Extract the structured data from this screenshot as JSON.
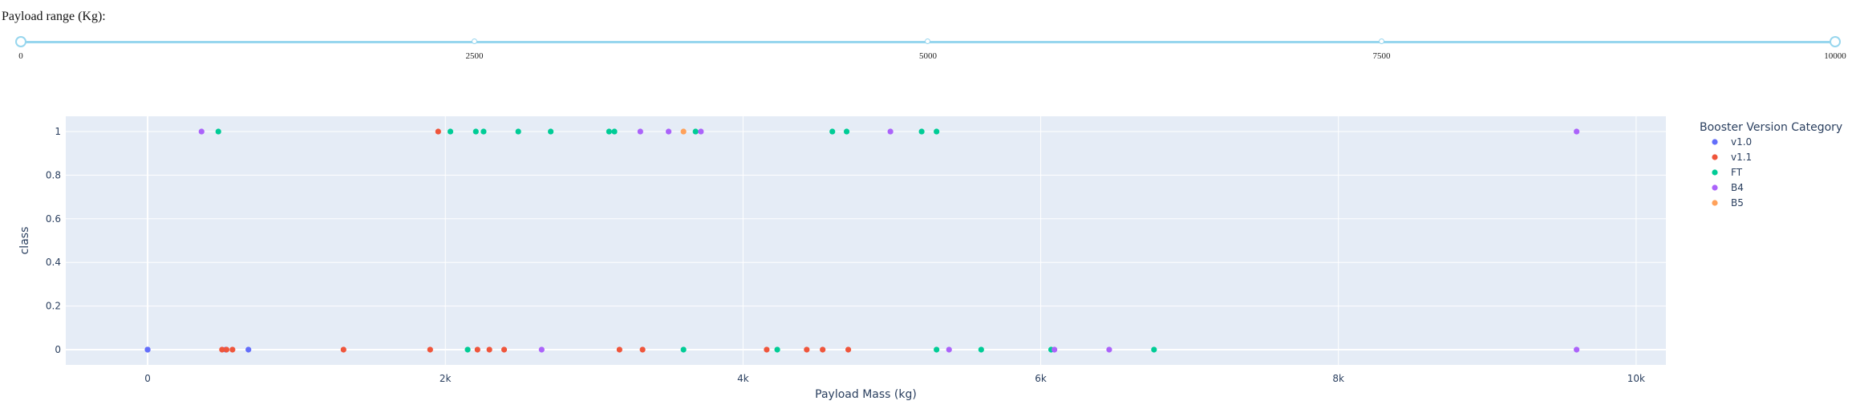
{
  "slider": {
    "title": "Payload range (Kg):",
    "min": 0,
    "max": 10000,
    "selected": [
      0,
      10000
    ],
    "marks": [
      "0",
      "2500",
      "5000",
      "7500",
      "10000"
    ],
    "track_color": "#97d6ee"
  },
  "chart_data": {
    "type": "scatter",
    "xlabel": "Payload Mass (kg)",
    "ylabel": "class",
    "xlim": [
      -550,
      10200
    ],
    "ylim": [
      -0.07,
      1.07
    ],
    "x_ticks": [
      0,
      2000,
      4000,
      6000,
      8000,
      10000
    ],
    "x_tick_labels": [
      "0",
      "2k",
      "4k",
      "6k",
      "8k",
      "10k"
    ],
    "y_ticks": [
      0,
      0.2,
      0.4,
      0.6,
      0.8,
      1
    ],
    "y_tick_labels": [
      "0",
      "0.2",
      "0.4",
      "0.6",
      "0.8",
      "1"
    ],
    "grid": true,
    "plot_background": "#e5ecf6",
    "legend": {
      "title": "Booster Version Category",
      "placement": "right"
    },
    "series": [
      {
        "name": "v1.0",
        "color": "#636efa",
        "points": [
          [
            0,
            0
          ],
          [
            0,
            0
          ],
          [
            525,
            0
          ],
          [
            677,
            0
          ]
        ]
      },
      {
        "name": "v1.1",
        "color": "#ef553b",
        "points": [
          [
            500,
            0
          ],
          [
            530,
            0
          ],
          [
            570,
            0
          ],
          [
            1316,
            0
          ],
          [
            1898,
            0
          ],
          [
            1952,
            1
          ],
          [
            2216,
            0
          ],
          [
            2296,
            0
          ],
          [
            2395,
            0
          ],
          [
            3170,
            0
          ],
          [
            3325,
            0
          ],
          [
            4159,
            0
          ],
          [
            4428,
            0
          ],
          [
            4535,
            0
          ],
          [
            4707,
            0
          ]
        ]
      },
      {
        "name": "FT",
        "color": "#00cc96",
        "points": [
          [
            475,
            1
          ],
          [
            2034,
            1
          ],
          [
            2150,
            0
          ],
          [
            2205,
            1
          ],
          [
            2257,
            1
          ],
          [
            2490,
            1
          ],
          [
            2708,
            1
          ],
          [
            3100,
            1
          ],
          [
            3136,
            1
          ],
          [
            3600,
            0
          ],
          [
            3681,
            1
          ],
          [
            4230,
            0
          ],
          [
            4600,
            1
          ],
          [
            4696,
            1
          ],
          [
            5200,
            1
          ],
          [
            5300,
            0
          ],
          [
            5300,
            1
          ],
          [
            5600,
            0
          ],
          [
            6070,
            0
          ],
          [
            6761,
            0
          ]
        ]
      },
      {
        "name": "B4",
        "color": "#ab63fa",
        "points": [
          [
            362,
            1
          ],
          [
            2647,
            0
          ],
          [
            3310,
            1
          ],
          [
            3500,
            1
          ],
          [
            3717,
            1
          ],
          [
            4990,
            1
          ],
          [
            5384,
            0
          ],
          [
            6092,
            0
          ],
          [
            6460,
            0
          ],
          [
            9600,
            0
          ],
          [
            9600,
            1
          ]
        ]
      },
      {
        "name": "B5",
        "color": "#ffa15a",
        "points": [
          [
            3600,
            1
          ]
        ]
      }
    ]
  }
}
